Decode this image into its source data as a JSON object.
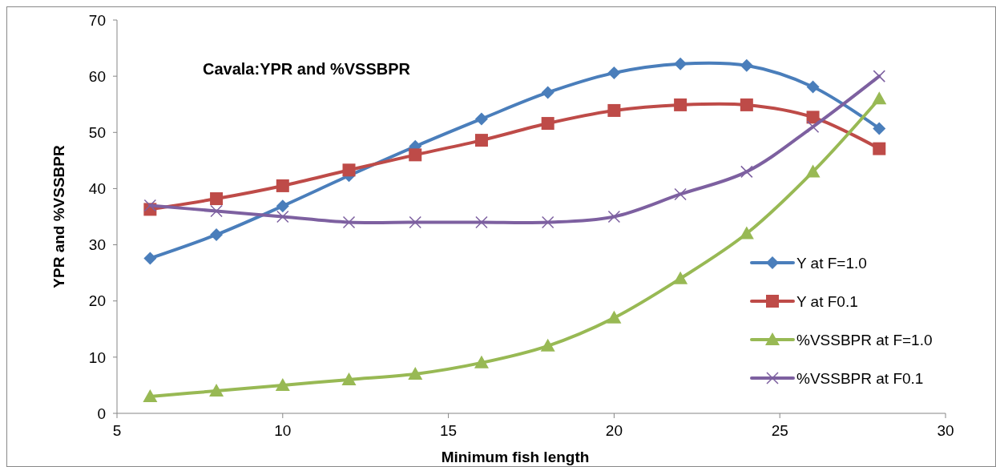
{
  "chart_data": {
    "type": "line",
    "title": "Cavala:YPR and %VSSBPR",
    "xlabel": "Minimum fish length",
    "ylabel": "YPR and %VSSBPR",
    "x": [
      6,
      8,
      10,
      12,
      14,
      16,
      18,
      20,
      22,
      24,
      26,
      28
    ],
    "xlim": [
      5,
      30
    ],
    "xticks": [
      5,
      10,
      15,
      20,
      25,
      30
    ],
    "ylim": [
      0,
      70
    ],
    "yticks": [
      0,
      10,
      20,
      30,
      40,
      50,
      60,
      70
    ],
    "grid": false,
    "legend": "right",
    "line_style": "solid",
    "series": [
      {
        "name": "Y at F=1.0",
        "color": "#4a7ebb",
        "marker": "diamond",
        "values": [
          27.6,
          31.8,
          36.9,
          42.3,
          47.5,
          52.4,
          57.1,
          60.6,
          62.2,
          61.9,
          58.1,
          50.7
        ]
      },
      {
        "name": "Y at F0.1",
        "color": "#be4b48",
        "marker": "square",
        "values": [
          36.3,
          38.2,
          40.5,
          43.3,
          46.0,
          48.6,
          51.6,
          53.9,
          54.9,
          54.9,
          52.7,
          47.1
        ]
      },
      {
        "name": "%VSSBPR at F=1.0",
        "color": "#98b954",
        "marker": "triangle",
        "values": [
          3,
          4,
          5,
          6,
          7,
          9,
          12,
          17,
          24,
          32,
          43,
          56
        ]
      },
      {
        "name": "%VSSBPR at F0.1",
        "color": "#7d60a0",
        "marker": "cross",
        "values": [
          37,
          36,
          35,
          34,
          34,
          34,
          34,
          35,
          39,
          43,
          51,
          60
        ]
      }
    ]
  }
}
